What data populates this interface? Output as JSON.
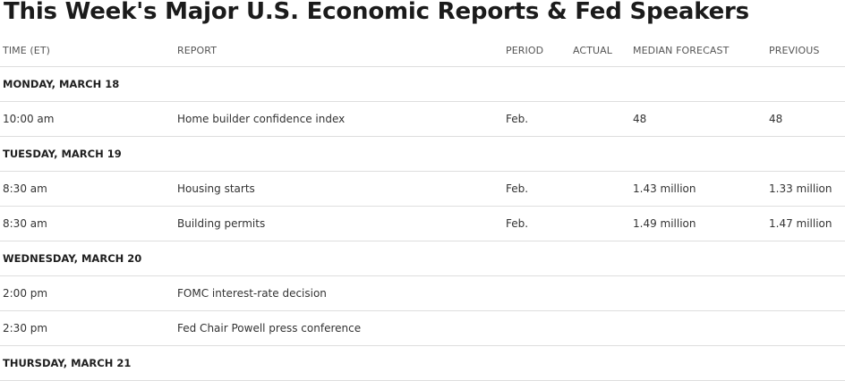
{
  "title": "This Week's Major U.S. Economic Reports & Fed Speakers",
  "columns": {
    "time": "TIME (ET)",
    "report": "REPORT",
    "period": "PERIOD",
    "actual": "ACTUAL",
    "median": "MEDIAN FORECAST",
    "previous": "PREVIOUS"
  },
  "days": [
    {
      "label": "MONDAY, MARCH 18",
      "rows": [
        {
          "time": "10:00 am",
          "report": "Home builder confidence index",
          "period": "Feb.",
          "actual": "",
          "median": "48",
          "previous": "48"
        }
      ]
    },
    {
      "label": "TUESDAY, MARCH 19",
      "rows": [
        {
          "time": "8:30 am",
          "report": "Housing starts",
          "period": "Feb.",
          "actual": "",
          "median": "1.43 million",
          "previous": "1.33 million"
        },
        {
          "time": "8:30 am",
          "report": "Building permits",
          "period": "Feb.",
          "actual": "",
          "median": "1.49 million",
          "previous": "1.47 million"
        }
      ]
    },
    {
      "label": "WEDNESDAY, MARCH 20",
      "rows": [
        {
          "time": "2:00 pm",
          "report": "FOMC interest-rate decision",
          "period": "",
          "actual": "",
          "median": "",
          "previous": ""
        },
        {
          "time": "2:30 pm",
          "report": "Fed Chair Powell press conference",
          "period": "",
          "actual": "",
          "median": "",
          "previous": ""
        }
      ]
    },
    {
      "label": "THURSDAY, MARCH 21",
      "rows": []
    }
  ]
}
